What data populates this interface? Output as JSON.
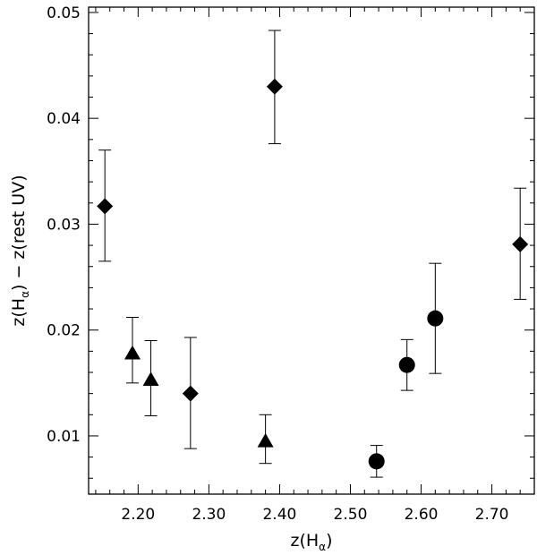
{
  "chart_data": {
    "type": "scatter",
    "xlabel": {
      "main": "z(H",
      "sub": "α",
      "close": ")"
    },
    "ylabel": {
      "main_left": "z(H",
      "sub": "α",
      "rest": ")  − z(rest UV)"
    },
    "xlim": [
      2.13,
      2.76
    ],
    "ylim": [
      0.0045,
      0.0505
    ],
    "x_ticks": [
      2.2,
      2.3,
      2.4,
      2.5,
      2.6,
      2.7
    ],
    "x_tick_labels": [
      "2.20",
      "2.30",
      "2.40",
      "2.50",
      "2.60",
      "2.70"
    ],
    "y_ticks": [
      0.01,
      0.02,
      0.03,
      0.04,
      0.05
    ],
    "y_tick_labels": [
      "0.01",
      "0.02",
      "0.03",
      "0.04",
      "0.05"
    ],
    "grid": false,
    "series": [
      {
        "marker": "diamond",
        "points": [
          {
            "x": 2.153,
            "y": 0.0317,
            "ylo": 0.0265,
            "yhi": 0.037
          },
          {
            "x": 2.274,
            "y": 0.014,
            "ylo": 0.0088,
            "yhi": 0.0193
          },
          {
            "x": 2.393,
            "y": 0.043,
            "ylo": 0.0376,
            "yhi": 0.0483
          },
          {
            "x": 2.74,
            "y": 0.0281,
            "ylo": 0.0229,
            "yhi": 0.0334
          }
        ]
      },
      {
        "marker": "triangle",
        "points": [
          {
            "x": 2.192,
            "y": 0.0178,
            "ylo": 0.015,
            "yhi": 0.0212
          },
          {
            "x": 2.218,
            "y": 0.0153,
            "ylo": 0.0119,
            "yhi": 0.019
          },
          {
            "x": 2.38,
            "y": 0.0095,
            "ylo": 0.0074,
            "yhi": 0.012
          }
        ]
      },
      {
        "marker": "circle",
        "points": [
          {
            "x": 2.537,
            "y": 0.0076,
            "ylo": 0.0061,
            "yhi": 0.0091
          },
          {
            "x": 2.58,
            "y": 0.0167,
            "ylo": 0.0143,
            "yhi": 0.0191
          },
          {
            "x": 2.62,
            "y": 0.0211,
            "ylo": 0.0159,
            "yhi": 0.0263
          }
        ]
      }
    ]
  }
}
